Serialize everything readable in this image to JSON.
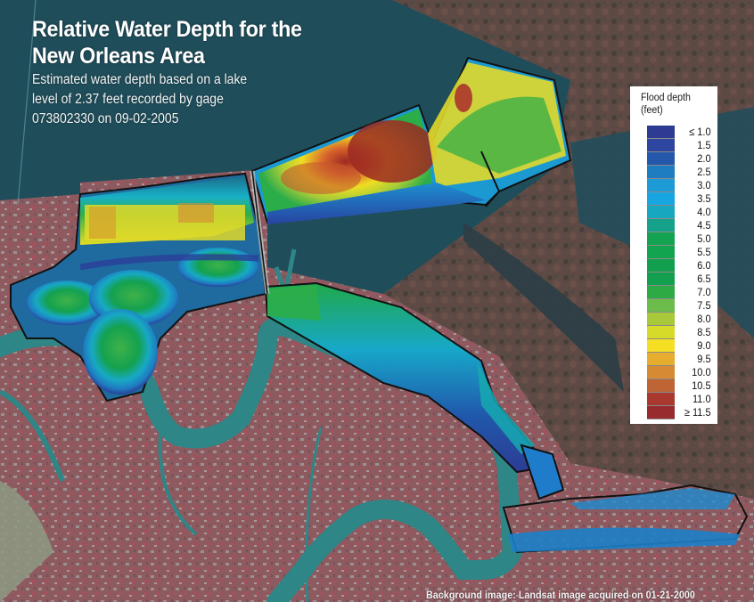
{
  "map": {
    "title_line1": "Relative Water Depth for the",
    "title_line2": "New Orleans Area",
    "subtitle_line1": "Estimated water depth based on a lake",
    "subtitle_line2": "level of 2.37 feet recorded by gage",
    "subtitle_line3": "073802330 on 09-02-2005",
    "credit": "Background image: Landsat image acquired on 01-21-2000"
  },
  "legend": {
    "title_line1": "Flood depth",
    "title_line2": "(feet)",
    "items": [
      {
        "label": "≤  1.0",
        "color": "#2e3b93"
      },
      {
        "label": "1.5",
        "color": "#2f46a0"
      },
      {
        "label": "2.0",
        "color": "#2458ab"
      },
      {
        "label": "2.5",
        "color": "#1e7cc0"
      },
      {
        "label": "3.0",
        "color": "#1e9ad6"
      },
      {
        "label": "3.5",
        "color": "#18a6e2"
      },
      {
        "label": "4.0",
        "color": "#17a8c0"
      },
      {
        "label": "4.5",
        "color": "#16a28a"
      },
      {
        "label": "5.0",
        "color": "#13a351"
      },
      {
        "label": "5.5",
        "color": "#13a44f"
      },
      {
        "label": "6.0",
        "color": "#12a04e"
      },
      {
        "label": "6.5",
        "color": "#12a04e"
      },
      {
        "label": "7.0",
        "color": "#2eaa45"
      },
      {
        "label": "7.5",
        "color": "#6bbc4a"
      },
      {
        "label": "8.0",
        "color": "#a8c93a"
      },
      {
        "label": "8.5",
        "color": "#d6db2a"
      },
      {
        "label": "9.0",
        "color": "#f6df22"
      },
      {
        "label": "9.5",
        "color": "#e6ad2f"
      },
      {
        "label": "10.0",
        "color": "#d58a33"
      },
      {
        "label": "10.5",
        "color": "#bf6434"
      },
      {
        "label": "11.0",
        "color": "#a9382e"
      },
      {
        "label": "≥ 11.5",
        "color": "#982b2e"
      }
    ]
  },
  "colors": {
    "lake": "#1f4f5d",
    "river": "#2f8a8a",
    "urban": "#8c5d63",
    "marsh": "#5e4c45",
    "boundary": "#111111"
  }
}
